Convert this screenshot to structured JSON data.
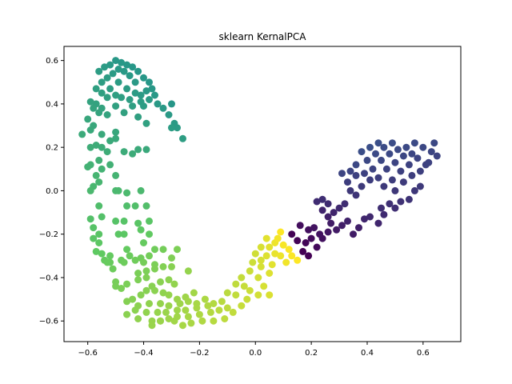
{
  "chart_data": {
    "type": "scatter",
    "title": "sklearn KernalPCA",
    "xlabel": "",
    "ylabel": "",
    "xlim": [
      -0.685,
      0.735
    ],
    "ylim": [
      -0.695,
      0.665
    ],
    "x_ticks": [
      -0.6,
      -0.4,
      -0.2,
      0.0,
      0.2,
      0.4,
      0.6
    ],
    "y_ticks": [
      -0.6,
      -0.4,
      -0.2,
      0.0,
      0.2,
      0.4,
      0.6
    ],
    "x_tick_labels": [
      "−0.6",
      "−0.4",
      "−0.2",
      "0.0",
      "0.2",
      "0.4",
      "0.6"
    ],
    "y_tick_labels": [
      "−0.6",
      "−0.4",
      "−0.2",
      "0.0",
      "0.2",
      "0.4",
      "0.6"
    ],
    "grid": false,
    "colormap": "viridis",
    "series": [
      {
        "points": [
          [
            -0.26,
            0.24
          ],
          [
            -0.28,
            0.29
          ],
          [
            -0.29,
            0.31
          ],
          [
            -0.3,
            0.29
          ],
          [
            -0.31,
            0.35
          ],
          [
            -0.3,
            0.4
          ],
          [
            -0.33,
            0.38
          ],
          [
            -0.35,
            0.4
          ],
          [
            -0.36,
            0.44
          ],
          [
            -0.37,
            0.47
          ],
          [
            -0.38,
            0.5
          ],
          [
            -0.39,
            0.46
          ],
          [
            -0.4,
            0.52
          ],
          [
            -0.41,
            0.44
          ],
          [
            -0.42,
            0.55
          ],
          [
            -0.43,
            0.5
          ],
          [
            -0.44,
            0.57
          ],
          [
            -0.45,
            0.53
          ],
          [
            -0.46,
            0.58
          ],
          [
            -0.47,
            0.55
          ],
          [
            -0.48,
            0.59
          ],
          [
            -0.49,
            0.56
          ],
          [
            -0.5,
            0.6
          ],
          [
            -0.51,
            0.54
          ],
          [
            -0.52,
            0.58
          ],
          [
            -0.53,
            0.52
          ],
          [
            -0.54,
            0.57
          ],
          [
            -0.55,
            0.5
          ],
          [
            -0.56,
            0.55
          ],
          [
            -0.57,
            0.47
          ],
          [
            -0.55,
            0.45
          ],
          [
            -0.52,
            0.47
          ],
          [
            -0.49,
            0.5
          ],
          [
            -0.46,
            0.47
          ],
          [
            -0.43,
            0.45
          ],
          [
            -0.41,
            0.41
          ],
          [
            -0.4,
            0.39
          ],
          [
            -0.38,
            0.42
          ],
          [
            -0.45,
            0.42
          ],
          [
            -0.48,
            0.43
          ],
          [
            -0.5,
            0.44
          ],
          [
            -0.53,
            0.43
          ],
          [
            -0.57,
            0.4
          ],
          [
            -0.58,
            0.38
          ],
          [
            -0.55,
            0.38
          ],
          [
            -0.5,
            0.39
          ],
          [
            -0.47,
            0.36
          ],
          [
            -0.44,
            0.39
          ],
          [
            -0.42,
            0.34
          ],
          [
            -0.39,
            0.31
          ],
          [
            -0.59,
            0.41
          ],
          [
            -0.56,
            0.36
          ],
          [
            -0.53,
            0.35
          ],
          [
            -0.6,
            0.33
          ],
          [
            -0.58,
            0.3
          ],
          [
            -0.55,
            0.26
          ],
          [
            -0.62,
            0.26
          ],
          [
            -0.59,
            0.28
          ],
          [
            -0.5,
            0.24
          ],
          [
            -0.5,
            0.27
          ],
          [
            -0.52,
            0.23
          ],
          [
            -0.57,
            0.21
          ],
          [
            -0.55,
            0.2
          ],
          [
            -0.59,
            0.2
          ],
          [
            -0.53,
            0.18
          ],
          [
            -0.47,
            0.18
          ],
          [
            -0.44,
            0.17
          ],
          [
            -0.42,
            0.19
          ],
          [
            -0.39,
            0.19
          ],
          [
            -0.56,
            0.14
          ],
          [
            -0.59,
            0.12
          ],
          [
            -0.6,
            0.11
          ],
          [
            -0.55,
            0.1
          ],
          [
            -0.52,
            0.12
          ],
          [
            -0.57,
            0.07
          ],
          [
            -0.56,
            0.04
          ],
          [
            -0.5,
            0.07
          ],
          [
            -0.58,
            0.02
          ],
          [
            -0.59,
            0.0
          ],
          [
            -0.5,
            0.0
          ],
          [
            -0.49,
            0.0
          ],
          [
            -0.46,
            -0.01
          ],
          [
            -0.41,
            0.0
          ],
          [
            -0.56,
            -0.07
          ],
          [
            -0.59,
            -0.13
          ],
          [
            -0.55,
            -0.12
          ],
          [
            -0.46,
            -0.07
          ],
          [
            -0.43,
            -0.07
          ],
          [
            -0.39,
            -0.07
          ],
          [
            -0.58,
            -0.17
          ],
          [
            -0.56,
            -0.2
          ],
          [
            -0.5,
            -0.14
          ],
          [
            -0.47,
            -0.14
          ],
          [
            -0.42,
            -0.15
          ],
          [
            -0.38,
            -0.14
          ],
          [
            -0.58,
            -0.22
          ],
          [
            -0.56,
            -0.24
          ],
          [
            -0.55,
            -0.29
          ],
          [
            -0.49,
            -0.2
          ],
          [
            -0.47,
            -0.2
          ],
          [
            -0.41,
            -0.18
          ],
          [
            -0.38,
            -0.2
          ],
          [
            -0.57,
            -0.28
          ],
          [
            -0.52,
            -0.3
          ],
          [
            -0.46,
            -0.27
          ],
          [
            -0.4,
            -0.24
          ],
          [
            -0.36,
            -0.27
          ],
          [
            -0.33,
            -0.27
          ],
          [
            -0.54,
            -0.32
          ],
          [
            -0.52,
            -0.33
          ],
          [
            -0.48,
            -0.32
          ],
          [
            -0.45,
            -0.3
          ],
          [
            -0.41,
            -0.31
          ],
          [
            -0.38,
            -0.3
          ],
          [
            -0.3,
            -0.31
          ],
          [
            -0.28,
            -0.27
          ],
          [
            -0.53,
            -0.33
          ],
          [
            -0.51,
            -0.36
          ],
          [
            -0.47,
            -0.33
          ],
          [
            -0.43,
            -0.32
          ],
          [
            -0.4,
            -0.33
          ],
          [
            -0.36,
            -0.34
          ],
          [
            -0.33,
            -0.35
          ],
          [
            -0.3,
            -0.35
          ],
          [
            -0.24,
            -0.37
          ],
          [
            -0.5,
            -0.42
          ],
          [
            -0.48,
            -0.45
          ],
          [
            -0.42,
            -0.38
          ],
          [
            -0.39,
            -0.37
          ],
          [
            -0.36,
            -0.36
          ],
          [
            -0.5,
            -0.44
          ],
          [
            -0.46,
            -0.43
          ],
          [
            -0.42,
            -0.41
          ],
          [
            -0.39,
            -0.4
          ],
          [
            -0.37,
            -0.44
          ],
          [
            -0.34,
            -0.42
          ],
          [
            -0.31,
            -0.41
          ],
          [
            -0.29,
            -0.43
          ],
          [
            -0.44,
            -0.5
          ],
          [
            -0.41,
            -0.48
          ],
          [
            -0.39,
            -0.46
          ],
          [
            -0.36,
            -0.46
          ],
          [
            -0.33,
            -0.47
          ],
          [
            -0.31,
            -0.48
          ],
          [
            -0.28,
            -0.5
          ],
          [
            -0.25,
            -0.49
          ],
          [
            -0.22,
            -0.47
          ],
          [
            -0.46,
            -0.51
          ],
          [
            -0.42,
            -0.53
          ],
          [
            -0.38,
            -0.52
          ],
          [
            -0.34,
            -0.52
          ],
          [
            -0.31,
            -0.53
          ],
          [
            -0.27,
            -0.52
          ],
          [
            -0.24,
            -0.51
          ],
          [
            -0.21,
            -0.52
          ],
          [
            -0.18,
            -0.5
          ],
          [
            -0.46,
            -0.57
          ],
          [
            -0.43,
            -0.55
          ],
          [
            -0.39,
            -0.56
          ],
          [
            -0.35,
            -0.56
          ],
          [
            -0.32,
            -0.56
          ],
          [
            -0.28,
            -0.55
          ],
          [
            -0.25,
            -0.55
          ],
          [
            -0.21,
            -0.54
          ],
          [
            -0.17,
            -0.53
          ],
          [
            -0.15,
            -0.52
          ],
          [
            -0.12,
            -0.51
          ],
          [
            -0.42,
            -0.59
          ],
          [
            -0.37,
            -0.6
          ],
          [
            -0.34,
            -0.6
          ],
          [
            -0.31,
            -0.59
          ],
          [
            -0.28,
            -0.58
          ],
          [
            -0.24,
            -0.58
          ],
          [
            -0.2,
            -0.57
          ],
          [
            -0.16,
            -0.56
          ],
          [
            -0.13,
            -0.55
          ],
          [
            -0.1,
            -0.54
          ],
          [
            -0.37,
            -0.62
          ],
          [
            -0.34,
            -0.6
          ],
          [
            -0.29,
            -0.6
          ],
          [
            -0.26,
            -0.62
          ],
          [
            -0.23,
            -0.61
          ],
          [
            -0.19,
            -0.6
          ],
          [
            -0.15,
            -0.6
          ],
          [
            -0.11,
            -0.59
          ],
          [
            -0.08,
            -0.56
          ],
          [
            -0.05,
            -0.53
          ],
          [
            -0.03,
            -0.5
          ],
          [
            -0.07,
            -0.48
          ],
          [
            -0.1,
            -0.47
          ],
          [
            -0.07,
            -0.43
          ],
          [
            -0.04,
            -0.44
          ],
          [
            -0.02,
            -0.46
          ],
          [
            0.01,
            -0.48
          ],
          [
            0.03,
            -0.44
          ],
          [
            0.05,
            -0.48
          ],
          [
            -0.05,
            -0.4
          ],
          [
            -0.02,
            -0.37
          ],
          [
            0.01,
            -0.4
          ],
          [
            0.02,
            -0.35
          ],
          [
            0.05,
            -0.38
          ],
          [
            -0.01,
            -0.33
          ],
          [
            0.02,
            -0.32
          ],
          [
            0.04,
            -0.3
          ],
          [
            0.06,
            -0.34
          ],
          [
            0.0,
            -0.29
          ],
          [
            0.02,
            -0.26
          ],
          [
            0.05,
            -0.26
          ],
          [
            0.07,
            -0.29
          ],
          [
            0.09,
            -0.3
          ],
          [
            0.04,
            -0.22
          ],
          [
            0.07,
            -0.24
          ],
          [
            0.08,
            -0.22
          ],
          [
            0.1,
            -0.25
          ],
          [
            0.12,
            -0.27
          ],
          [
            0.13,
            -0.3
          ],
          [
            0.11,
            -0.33
          ],
          [
            0.15,
            -0.32
          ],
          [
            0.17,
            -0.28
          ],
          [
            0.19,
            -0.3
          ],
          [
            0.09,
            -0.19
          ],
          [
            0.13,
            -0.2
          ],
          [
            0.15,
            -0.23
          ],
          [
            0.18,
            -0.24
          ],
          [
            0.2,
            -0.22
          ],
          [
            0.22,
            -0.26
          ],
          [
            0.24,
            -0.22
          ],
          [
            0.26,
            -0.19
          ],
          [
            0.16,
            -0.16
          ],
          [
            0.19,
            -0.18
          ],
          [
            0.21,
            -0.17
          ],
          [
            0.23,
            -0.2
          ],
          [
            0.27,
            -0.15
          ],
          [
            0.29,
            -0.18
          ],
          [
            0.31,
            -0.16
          ],
          [
            0.33,
            -0.14
          ],
          [
            0.35,
            -0.2
          ],
          [
            0.37,
            -0.17
          ],
          [
            0.39,
            -0.13
          ],
          [
            0.41,
            -0.12
          ],
          [
            0.44,
            -0.15
          ],
          [
            0.46,
            -0.11
          ],
          [
            0.45,
            -0.08
          ],
          [
            0.48,
            -0.06
          ],
          [
            0.5,
            -0.08
          ],
          [
            0.52,
            -0.05
          ],
          [
            0.55,
            -0.04
          ],
          [
            0.57,
            0.0
          ],
          [
            0.59,
            0.02
          ],
          [
            0.5,
            0.0
          ],
          [
            0.53,
            0.04
          ],
          [
            0.56,
            0.07
          ],
          [
            0.59,
            0.09
          ],
          [
            0.61,
            0.12
          ],
          [
            0.46,
            0.02
          ],
          [
            0.49,
            0.05
          ],
          [
            0.52,
            0.09
          ],
          [
            0.55,
            0.12
          ],
          [
            0.58,
            0.15
          ],
          [
            0.44,
            0.06
          ],
          [
            0.47,
            0.1
          ],
          [
            0.5,
            0.13
          ],
          [
            0.53,
            0.16
          ],
          [
            0.42,
            0.1
          ],
          [
            0.45,
            0.14
          ],
          [
            0.48,
            0.17
          ],
          [
            0.51,
            0.19
          ],
          [
            0.4,
            0.14
          ],
          [
            0.43,
            0.17
          ],
          [
            0.46,
            0.2
          ],
          [
            0.49,
            0.22
          ],
          [
            0.38,
            0.18
          ],
          [
            0.41,
            0.2
          ],
          [
            0.44,
            0.22
          ],
          [
            0.6,
            0.2
          ],
          [
            0.63,
            0.18
          ],
          [
            0.65,
            0.16
          ],
          [
            0.62,
            0.13
          ],
          [
            0.64,
            0.22
          ],
          [
            0.57,
            0.22
          ],
          [
            0.54,
            0.2
          ],
          [
            0.56,
            0.17
          ],
          [
            0.36,
            0.12
          ],
          [
            0.39,
            0.08
          ],
          [
            0.41,
            0.05
          ],
          [
            0.38,
            0.02
          ],
          [
            0.36,
            -0.02
          ],
          [
            0.34,
            0.0
          ],
          [
            0.33,
            0.04
          ],
          [
            0.31,
            0.08
          ],
          [
            0.32,
            -0.06
          ],
          [
            0.3,
            -0.08
          ],
          [
            0.28,
            -0.1
          ],
          [
            0.26,
            -0.06
          ],
          [
            0.24,
            -0.04
          ],
          [
            0.26,
            -0.12
          ],
          [
            0.24,
            -0.09
          ],
          [
            0.22,
            -0.05
          ],
          [
            0.34,
            0.09
          ],
          [
            0.36,
            0.07
          ]
        ]
      }
    ]
  }
}
